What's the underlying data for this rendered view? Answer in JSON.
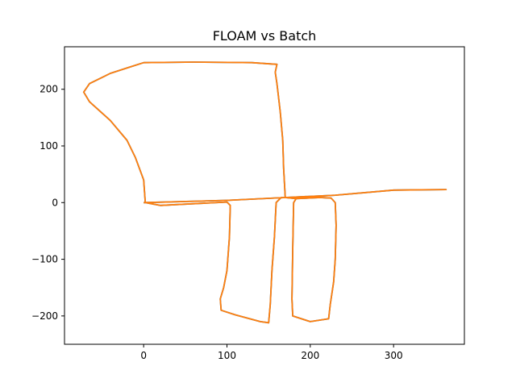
{
  "chart_data": {
    "type": "line",
    "title": "FLOAM vs Batch",
    "xlabel": "",
    "ylabel": "",
    "xlim": [
      -95,
      385
    ],
    "ylim": [
      -250,
      275
    ],
    "xticks": [
      0,
      100,
      200,
      300
    ],
    "yticks": [
      -200,
      -100,
      0,
      100,
      200
    ],
    "grid": false,
    "legend": "none",
    "series": [
      {
        "color": "#1f77b4",
        "points": [
          [
            0,
            0
          ],
          [
            100,
            4
          ],
          [
            170,
            9
          ],
          [
            230,
            13
          ],
          [
            300,
            22
          ],
          [
            363,
            23
          ],
          [
            300,
            22
          ],
          [
            230,
            13
          ],
          [
            195,
            10
          ],
          [
            183,
            7
          ],
          [
            180,
            0
          ],
          [
            179,
            -80
          ],
          [
            178,
            -170
          ],
          [
            179,
            -200
          ],
          [
            200,
            -210
          ],
          [
            222,
            -205
          ],
          [
            224,
            -180
          ],
          [
            228,
            -140
          ],
          [
            230,
            -100
          ],
          [
            231,
            -40
          ],
          [
            230,
            0
          ],
          [
            225,
            8
          ],
          [
            212,
            9
          ],
          [
            183,
            7
          ],
          [
            170,
            9
          ],
          [
            168,
            60
          ],
          [
            167,
            110
          ],
          [
            164,
            160
          ],
          [
            160,
            210
          ],
          [
            158,
            230
          ],
          [
            160,
            244
          ],
          [
            130,
            247
          ],
          [
            60,
            248
          ],
          [
            0,
            247
          ],
          [
            -15,
            240
          ],
          [
            -40,
            228
          ],
          [
            -65,
            210
          ],
          [
            -72,
            195
          ],
          [
            -65,
            178
          ],
          [
            -40,
            145
          ],
          [
            -20,
            110
          ],
          [
            -10,
            80
          ],
          [
            0,
            40
          ],
          [
            2,
            0
          ],
          [
            20,
            -5
          ],
          [
            100,
            1
          ],
          [
            104,
            -5
          ],
          [
            103,
            -60
          ],
          [
            100,
            -120
          ],
          [
            96,
            -150
          ],
          [
            92,
            -170
          ],
          [
            93,
            -190
          ],
          [
            110,
            -198
          ],
          [
            140,
            -210
          ],
          [
            150,
            -212
          ],
          [
            152,
            -180
          ],
          [
            154,
            -120
          ],
          [
            157,
            -60
          ],
          [
            159,
            0
          ],
          [
            165,
            9
          ],
          [
            170,
            9
          ]
        ]
      },
      {
        "color": "#ff7f0e",
        "points": [
          [
            0,
            0
          ],
          [
            100,
            4
          ],
          [
            170,
            9
          ],
          [
            230,
            13
          ],
          [
            300,
            22
          ],
          [
            363,
            23
          ],
          [
            300,
            22
          ],
          [
            230,
            13
          ],
          [
            195,
            10
          ],
          [
            183,
            7
          ],
          [
            180,
            0
          ],
          [
            179,
            -80
          ],
          [
            178,
            -170
          ],
          [
            179,
            -200
          ],
          [
            200,
            -210
          ],
          [
            222,
            -205
          ],
          [
            224,
            -180
          ],
          [
            228,
            -140
          ],
          [
            230,
            -100
          ],
          [
            231,
            -40
          ],
          [
            230,
            0
          ],
          [
            225,
            8
          ],
          [
            212,
            9
          ],
          [
            183,
            7
          ],
          [
            170,
            9
          ],
          [
            168,
            60
          ],
          [
            167,
            110
          ],
          [
            164,
            160
          ],
          [
            160,
            210
          ],
          [
            158,
            230
          ],
          [
            160,
            244
          ],
          [
            130,
            247
          ],
          [
            60,
            248
          ],
          [
            0,
            247
          ],
          [
            -15,
            240
          ],
          [
            -40,
            228
          ],
          [
            -65,
            210
          ],
          [
            -72,
            195
          ],
          [
            -65,
            178
          ],
          [
            -40,
            145
          ],
          [
            -20,
            110
          ],
          [
            -10,
            80
          ],
          [
            0,
            40
          ],
          [
            2,
            0
          ],
          [
            20,
            -5
          ],
          [
            100,
            1
          ],
          [
            104,
            -5
          ],
          [
            103,
            -60
          ],
          [
            100,
            -120
          ],
          [
            96,
            -150
          ],
          [
            92,
            -170
          ],
          [
            93,
            -190
          ],
          [
            110,
            -198
          ],
          [
            140,
            -210
          ],
          [
            150,
            -212
          ],
          [
            152,
            -180
          ],
          [
            154,
            -120
          ],
          [
            157,
            -60
          ],
          [
            159,
            0
          ],
          [
            165,
            9
          ],
          [
            170,
            9
          ]
        ]
      }
    ]
  }
}
